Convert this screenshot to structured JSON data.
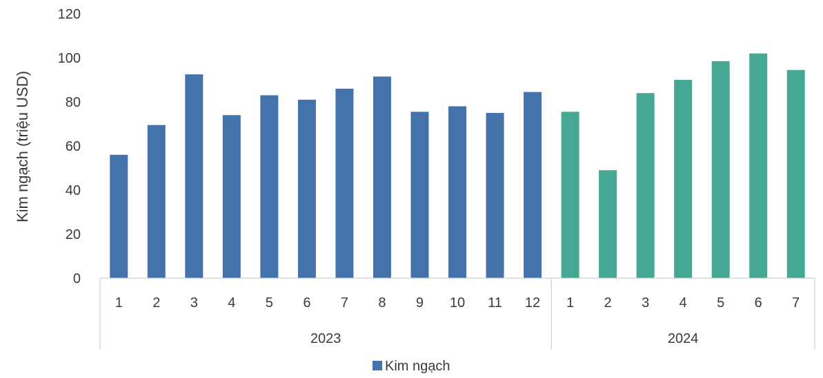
{
  "chart_data": {
    "type": "bar",
    "title": "",
    "xlabel": "",
    "ylabel": "Kim ngạch (triệu USD)",
    "ylim": [
      0,
      120
    ],
    "yticks": [
      0,
      20,
      40,
      60,
      80,
      100,
      120
    ],
    "grid": false,
    "legend": {
      "position": "bottom",
      "label": "Kim ngạch"
    },
    "categories": [
      "1",
      "2",
      "3",
      "4",
      "5",
      "6",
      "7",
      "8",
      "9",
      "10",
      "11",
      "12",
      "1",
      "2",
      "3",
      "4",
      "5",
      "6",
      "7"
    ],
    "groups": [
      {
        "label": "2023",
        "count": 12,
        "color": "#4472aa"
      },
      {
        "label": "2024",
        "count": 7,
        "color": "#44a894"
      }
    ],
    "series": [
      {
        "name": "Kim ngạch",
        "values": [
          56,
          69.5,
          92.5,
          74,
          83,
          81,
          86,
          91.5,
          75.5,
          78,
          75,
          84.5,
          75.5,
          49,
          84,
          90,
          98.5,
          102,
          94.5
        ]
      }
    ]
  }
}
